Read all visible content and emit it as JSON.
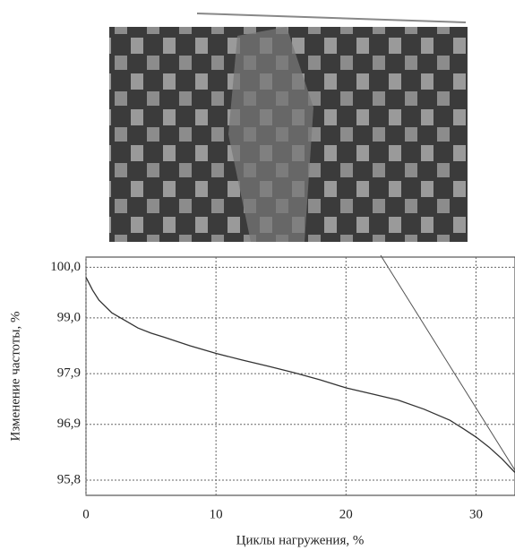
{
  "chart_data": {
    "type": "line",
    "x_label": "Циклы нагружения, %",
    "y_label": "Изменение частоты, %",
    "x": [
      0,
      0.5,
      1,
      2,
      3,
      4,
      5,
      6,
      8,
      10,
      12,
      14,
      16,
      18,
      20,
      22,
      24,
      26,
      28,
      29,
      30,
      31,
      32,
      33
    ],
    "series": [
      {
        "color": "#333333",
        "values": [
          99.8,
          99.55,
          99.35,
          99.1,
          98.95,
          98.8,
          98.7,
          98.62,
          98.45,
          98.3,
          98.17,
          98.05,
          97.92,
          97.78,
          97.62,
          97.5,
          97.38,
          97.2,
          96.98,
          96.82,
          96.65,
          96.45,
          96.22,
          95.95
        ]
      }
    ],
    "xlim": [
      0,
      33
    ],
    "xticks": [
      0,
      10,
      20,
      30
    ],
    "ylim": [
      95.5,
      100.2
    ],
    "yticks": [
      {
        "value": 95.8,
        "label": "95,8"
      },
      {
        "value": 96.9,
        "label": "96,9"
      },
      {
        "value": 97.9,
        "label": "97,9"
      },
      {
        "value": 99.0,
        "label": "99,0"
      },
      {
        "value": 100.0,
        "label": "100,0"
      }
    ],
    "grid": true
  }
}
